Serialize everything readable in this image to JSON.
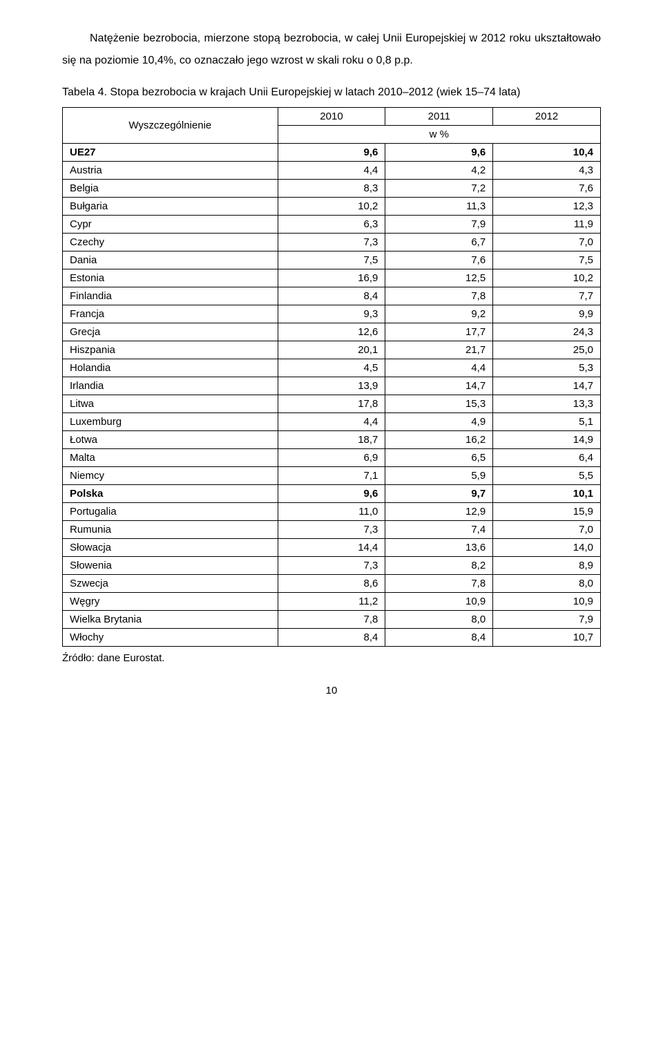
{
  "intro": "Natężenie bezrobocia, mierzone stopą bezrobocia, w całej Unii Europejskiej w 2012 roku ukształtowało się na poziomie 10,4%, co oznaczało jego wzrost w skali roku o 0,8 p.p.",
  "table": {
    "caption": "Tabela 4. Stopa bezrobocia w krajach Unii Europejskiej w latach 2010–2012 (wiek 15–74 lata)",
    "header_label": "Wyszczególnienie",
    "year_cols": [
      "2010",
      "2011",
      "2012"
    ],
    "unit_label": "w %",
    "rows": [
      {
        "name": "UE27",
        "bold": true,
        "values": [
          "9,6",
          "9,6",
          "10,4"
        ]
      },
      {
        "name": "Austria",
        "bold": false,
        "values": [
          "4,4",
          "4,2",
          "4,3"
        ]
      },
      {
        "name": "Belgia",
        "bold": false,
        "values": [
          "8,3",
          "7,2",
          "7,6"
        ]
      },
      {
        "name": "Bułgaria",
        "bold": false,
        "values": [
          "10,2",
          "11,3",
          "12,3"
        ]
      },
      {
        "name": "Cypr",
        "bold": false,
        "values": [
          "6,3",
          "7,9",
          "11,9"
        ]
      },
      {
        "name": "Czechy",
        "bold": false,
        "values": [
          "7,3",
          "6,7",
          "7,0"
        ]
      },
      {
        "name": "Dania",
        "bold": false,
        "values": [
          "7,5",
          "7,6",
          "7,5"
        ]
      },
      {
        "name": "Estonia",
        "bold": false,
        "values": [
          "16,9",
          "12,5",
          "10,2"
        ]
      },
      {
        "name": "Finlandia",
        "bold": false,
        "values": [
          "8,4",
          "7,8",
          "7,7"
        ]
      },
      {
        "name": "Francja",
        "bold": false,
        "values": [
          "9,3",
          "9,2",
          "9,9"
        ]
      },
      {
        "name": "Grecja",
        "bold": false,
        "values": [
          "12,6",
          "17,7",
          "24,3"
        ]
      },
      {
        "name": "Hiszpania",
        "bold": false,
        "values": [
          "20,1",
          "21,7",
          "25,0"
        ]
      },
      {
        "name": "Holandia",
        "bold": false,
        "values": [
          "4,5",
          "4,4",
          "5,3"
        ]
      },
      {
        "name": "Irlandia",
        "bold": false,
        "values": [
          "13,9",
          "14,7",
          "14,7"
        ]
      },
      {
        "name": "Litwa",
        "bold": false,
        "values": [
          "17,8",
          "15,3",
          "13,3"
        ]
      },
      {
        "name": "Luxemburg",
        "bold": false,
        "values": [
          "4,4",
          "4,9",
          "5,1"
        ]
      },
      {
        "name": "Łotwa",
        "bold": false,
        "values": [
          "18,7",
          "16,2",
          "14,9"
        ]
      },
      {
        "name": "Malta",
        "bold": false,
        "values": [
          "6,9",
          "6,5",
          "6,4"
        ]
      },
      {
        "name": "Niemcy",
        "bold": false,
        "values": [
          "7,1",
          "5,9",
          "5,5"
        ]
      },
      {
        "name": "Polska",
        "bold": true,
        "values": [
          "9,6",
          "9,7",
          "10,1"
        ]
      },
      {
        "name": "Portugalia",
        "bold": false,
        "values": [
          "11,0",
          "12,9",
          "15,9"
        ]
      },
      {
        "name": "Rumunia",
        "bold": false,
        "values": [
          "7,3",
          "7,4",
          "7,0"
        ]
      },
      {
        "name": "Słowacja",
        "bold": false,
        "values": [
          "14,4",
          "13,6",
          "14,0"
        ]
      },
      {
        "name": "Słowenia",
        "bold": false,
        "values": [
          "7,3",
          "8,2",
          "8,9"
        ]
      },
      {
        "name": "Szwecja",
        "bold": false,
        "values": [
          "8,6",
          "7,8",
          "8,0"
        ]
      },
      {
        "name": "Węgry",
        "bold": false,
        "values": [
          "11,2",
          "10,9",
          "10,9"
        ]
      },
      {
        "name": "Wielka Brytania",
        "bold": false,
        "values": [
          "7,8",
          "8,0",
          "7,9"
        ]
      },
      {
        "name": "Włochy",
        "bold": false,
        "values": [
          "8,4",
          "8,4",
          "10,7"
        ]
      }
    ]
  },
  "source": "Źródło: dane Eurostat.",
  "page_number": "10",
  "styling": {
    "body_width": 960,
    "body_bg": "#ffffff",
    "text_color": "#000000",
    "border_color": "#000000",
    "font_family": "Arial, Helvetica, sans-serif",
    "intro_fontsize": 16,
    "table_fontsize": 15,
    "col_widths_pct": [
      40,
      20,
      20,
      20
    ]
  }
}
